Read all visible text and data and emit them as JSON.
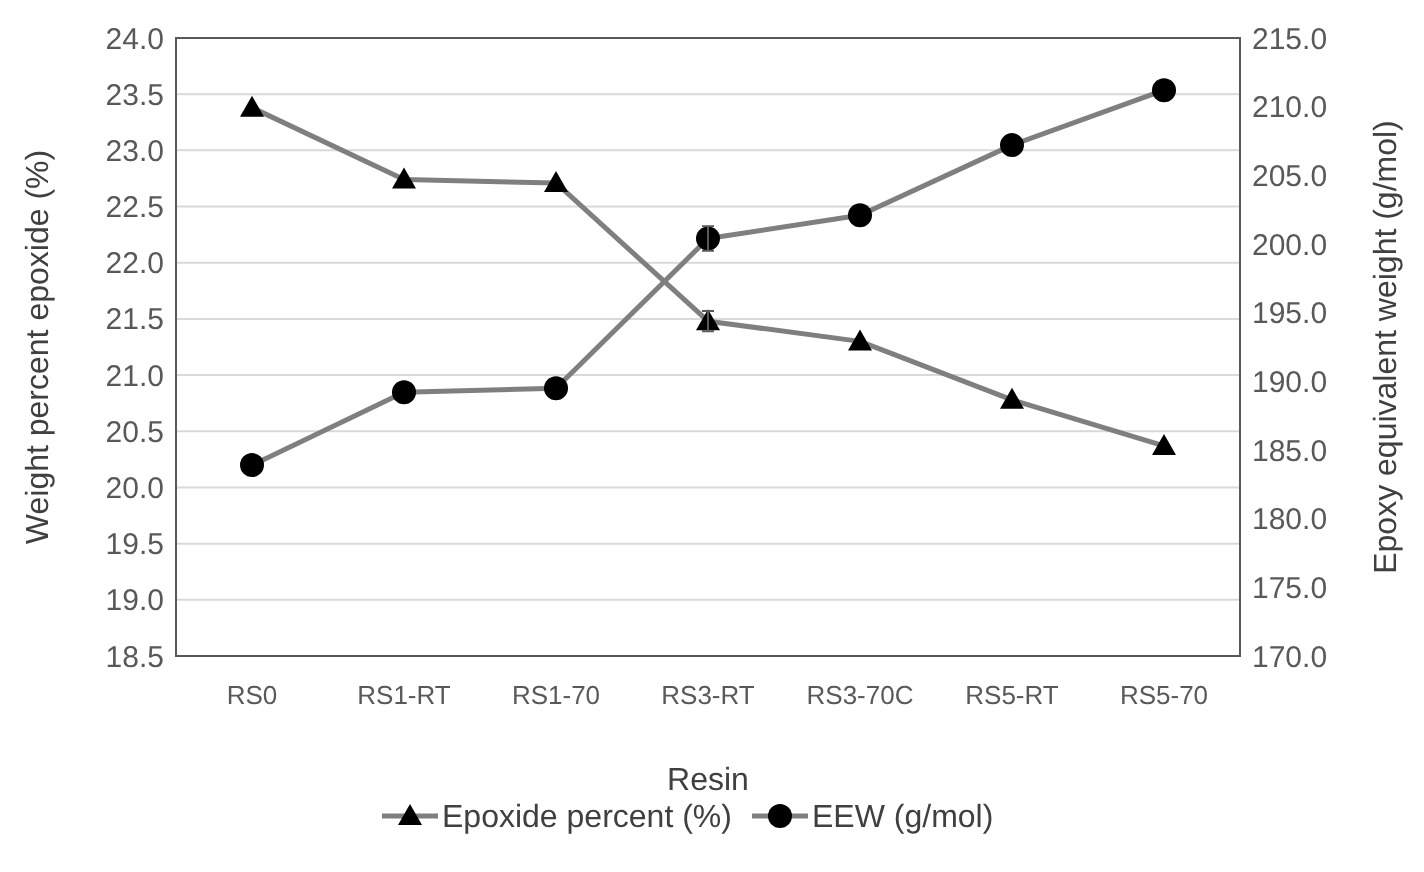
{
  "chart_data": {
    "type": "line",
    "xlabel": "Resin",
    "ylabel": "Weight percent epoxide (%)",
    "y2label": "Epoxy equivalent weight (g/mol)",
    "categories": [
      "RS0",
      "RS1-RT",
      "RS1-70",
      "RS3-RT",
      "RS3-70C",
      "RS5-RT",
      "RS5-70"
    ],
    "series": [
      {
        "name": "Epoxide percent (%)",
        "color": "#7f7f7f",
        "marker": "triangle",
        "values": [
          23.38,
          22.74,
          22.71,
          21.48,
          21.3,
          20.78,
          20.37
        ],
        "errors": [
          null,
          null,
          null,
          0.09,
          null,
          null,
          null
        ]
      },
      {
        "name": "EEW (g/mol)",
        "color": "#7f7f7f",
        "marker": "circle",
        "axis": "y2",
        "values": [
          183.9,
          189.2,
          189.5,
          200.4,
          202.1,
          207.2,
          211.2
        ],
        "errors": [
          null,
          null,
          null,
          0.9,
          null,
          null,
          null
        ]
      }
    ],
    "ylim": [
      18.5,
      24
    ],
    "yticks": [
      {
        "value": 18.5,
        "label": "18.5"
      },
      {
        "value": 19,
        "label": "19.0"
      },
      {
        "value": 19.5,
        "label": "19.5"
      },
      {
        "value": 20,
        "label": "20.0"
      },
      {
        "value": 20.5,
        "label": "20.5"
      },
      {
        "value": 21,
        "label": "21.0"
      },
      {
        "value": 21.5,
        "label": "21.5"
      },
      {
        "value": 22,
        "label": "22.0"
      },
      {
        "value": 22.5,
        "label": "22.5"
      },
      {
        "value": 23,
        "label": "23.0"
      },
      {
        "value": 23.5,
        "label": "23.5"
      },
      {
        "value": 24,
        "label": "24.0"
      }
    ],
    "y2lim": [
      170,
      215
    ],
    "y2ticks": [
      {
        "value": 170,
        "label": "170.0"
      },
      {
        "value": 175,
        "label": "175.0"
      },
      {
        "value": 180,
        "label": "180.0"
      },
      {
        "value": 185,
        "label": "185.0"
      },
      {
        "value": 190,
        "label": "190.0"
      },
      {
        "value": 195,
        "label": "195.0"
      },
      {
        "value": 200,
        "label": "200.0"
      },
      {
        "value": 205,
        "label": "205.0"
      },
      {
        "value": 210,
        "label": "210.0"
      },
      {
        "value": 215,
        "label": "215.0"
      }
    ],
    "grid": "y",
    "legend": "bottom",
    "line_style": "solid"
  }
}
